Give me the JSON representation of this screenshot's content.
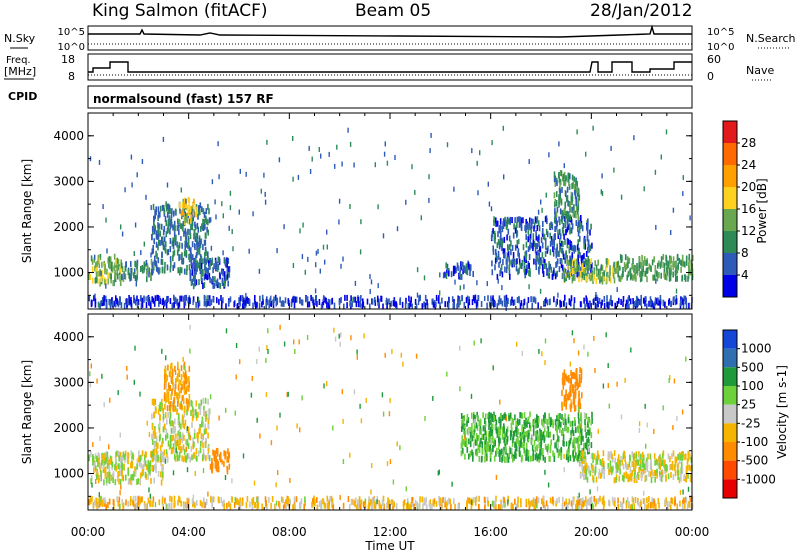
{
  "header": {
    "station": "King Salmon (fitACF)",
    "beam": "Beam 05",
    "date": "28/Jan/2012"
  },
  "panels": {
    "nsky": {
      "label": "N.Sky",
      "right_label": "N.Search",
      "left_ticks": [
        "10^5",
        "10^0"
      ],
      "right_ticks": [
        "10^5",
        "10^0"
      ]
    },
    "freq": {
      "label_line1": "Freq.",
      "label_line2": "[MHz]",
      "left_ticks": [
        "18",
        "8"
      ],
      "right_label": "Nave",
      "right_ticks": [
        "60",
        "0"
      ]
    },
    "cpid": {
      "label": "CPID",
      "text": "normalsound (fast) 157 RF"
    }
  },
  "colors": {
    "power": [
      "#0000e6",
      "#2f5bb8",
      "#2e8b57",
      "#6aa84f",
      "#ffd21f",
      "#ff9f00",
      "#ff6a00",
      "#e31a1c"
    ],
    "velocity": [
      "#1446d8",
      "#2f6fb0",
      "#1f9a3a",
      "#6cd13a",
      "#c8c8c8",
      "#f5b400",
      "#ff8c00",
      "#ff4a00",
      "#e60000"
    ]
  },
  "chart_data": [
    {
      "type": "heatmap",
      "title": "",
      "xlabel": "Time UT",
      "ylabel": "Slant Range [km]",
      "x_ticks": [
        "00:00",
        "04:00",
        "08:00",
        "12:00",
        "16:00",
        "20:00",
        "00:00"
      ],
      "y_ticks": [
        "1000",
        "2000",
        "3000",
        "4000"
      ],
      "ylim": [
        200,
        4500
      ],
      "xlim_hours": [
        0,
        24
      ],
      "colorbar": {
        "label": "Power [dB]",
        "ticks": [
          "4",
          "8",
          "12",
          "16",
          "20",
          "24",
          "28"
        ],
        "range": [
          0,
          30
        ]
      },
      "clusters": [
        {
          "t": [
            0.0,
            1.3
          ],
          "r": [
            750,
            1350
          ],
          "v": 14
        },
        {
          "t": [
            1.3,
            2.6
          ],
          "r": [
            850,
            1250
          ],
          "v": 10
        },
        {
          "t": [
            2.5,
            4.8
          ],
          "r": [
            1000,
            2500
          ],
          "v": 8
        },
        {
          "t": [
            3.6,
            4.3
          ],
          "r": [
            2100,
            2600
          ],
          "v": 18
        },
        {
          "t": [
            4.0,
            5.6
          ],
          "r": [
            700,
            1300
          ],
          "v": 6
        },
        {
          "t": [
            14.1,
            15.3
          ],
          "r": [
            900,
            1200
          ],
          "v": 6
        },
        {
          "t": [
            16.0,
            20.0
          ],
          "r": [
            900,
            2200
          ],
          "v": 6
        },
        {
          "t": [
            18.8,
            21.0
          ],
          "r": [
            800,
            1250
          ],
          "v": 14
        },
        {
          "t": [
            21.0,
            24.0
          ],
          "r": [
            850,
            1350
          ],
          "v": 12
        },
        {
          "t": [
            18.5,
            19.5
          ],
          "r": [
            2200,
            3200
          ],
          "v": 10
        },
        {
          "t": [
            0.0,
            24.0
          ],
          "r": [
            250,
            450
          ],
          "v": 4
        }
      ]
    },
    {
      "type": "heatmap",
      "title": "",
      "xlabel": "Time UT",
      "ylabel": "Slant Range [km]",
      "x_ticks": [
        "00:00",
        "04:00",
        "08:00",
        "12:00",
        "16:00",
        "20:00",
        "00:00"
      ],
      "y_ticks": [
        "1000",
        "2000",
        "3000",
        "4000"
      ],
      "ylim": [
        200,
        4500
      ],
      "xlim_hours": [
        0,
        24
      ],
      "colorbar": {
        "label": "Velocity [m s-1]",
        "ticks": [
          "1000",
          "500",
          "100",
          "25",
          "-25",
          "-100",
          "-500",
          "-1000"
        ]
      },
      "clusters": [
        {
          "t": [
            0.0,
            3.0
          ],
          "r": [
            800,
            1450
          ],
          "v": 0
        },
        {
          "t": [
            2.5,
            4.8
          ],
          "r": [
            1300,
            2600
          ],
          "v": 0
        },
        {
          "t": [
            4.8,
            5.6
          ],
          "r": [
            1000,
            1500
          ],
          "v": -300
        },
        {
          "t": [
            3.0,
            4.0
          ],
          "r": [
            2400,
            3400
          ],
          "v": -100
        },
        {
          "t": [
            14.8,
            20.0
          ],
          "r": [
            1300,
            2300
          ],
          "v": 100
        },
        {
          "t": [
            18.8,
            19.6
          ],
          "r": [
            2400,
            3300
          ],
          "v": -300
        },
        {
          "t": [
            19.5,
            24.0
          ],
          "r": [
            850,
            1450
          ],
          "v": 0
        },
        {
          "t": [
            0.0,
            24.0
          ],
          "r": [
            250,
            450
          ],
          "v": -50
        }
      ]
    }
  ]
}
